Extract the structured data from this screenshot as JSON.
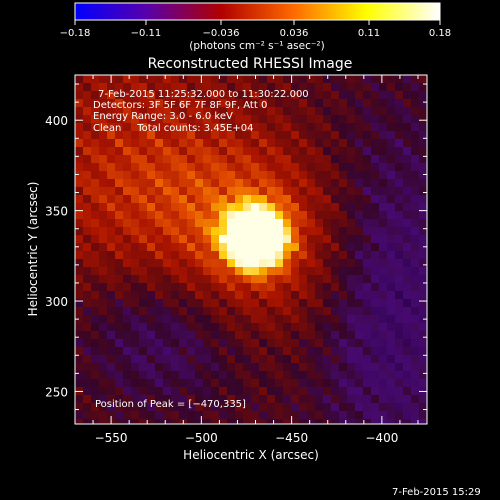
{
  "chart_data": {
    "type": "heatmap",
    "title": "Reconstructed RHESSI Image",
    "xlabel": "Heliocentric X (arcsec)",
    "ylabel": "Heliocentric Y (arcsec)",
    "x_range": [
      -570,
      -375
    ],
    "y_range": [
      232,
      425
    ],
    "x_ticks": [
      -550,
      -500,
      -450,
      -400
    ],
    "x_tick_labels": [
      "−550",
      "−500",
      "−450",
      "−400"
    ],
    "y_ticks": [
      250,
      300,
      350,
      400
    ],
    "y_tick_labels": [
      "250",
      "300",
      "350",
      "400"
    ],
    "colorbar": {
      "range": [
        -0.18,
        0.18
      ],
      "ticks": [
        -0.18,
        -0.11,
        -0.036,
        0.036,
        0.11,
        0.18
      ],
      "tick_labels": [
        "−0.18",
        "−0.11",
        "−0.036",
        "0.036",
        "0.11",
        "0.18"
      ],
      "unit_label": "(photons cm⁻² s⁻¹ asec⁻²)",
      "colormap": "blue-purple-red-yellow-white",
      "stops": [
        "#0000ff",
        "#5a00a8",
        "#b00000",
        "#ff6a00",
        "#ffff00",
        "#ffffff"
      ]
    },
    "annotations": [
      "7-Feb-2015 11:25:32.000 to 11:30:22.000",
      "Detectors: 3F 5F 6F 7F 8F 9F, Att 0",
      "Energy Range: 3.0 - 6.0 keV",
      "Clean     Total counts: 3.45E+04"
    ],
    "peak_label": "Position of Peak = [−470,335]",
    "peak": {
      "x": -470,
      "y": 335,
      "value": 0.18
    },
    "background": {
      "red_region": "upper-left and central band",
      "purple_region": "lower-left and right side"
    }
  },
  "footer": {
    "timestamp": "7-Feb-2015 15:29"
  }
}
